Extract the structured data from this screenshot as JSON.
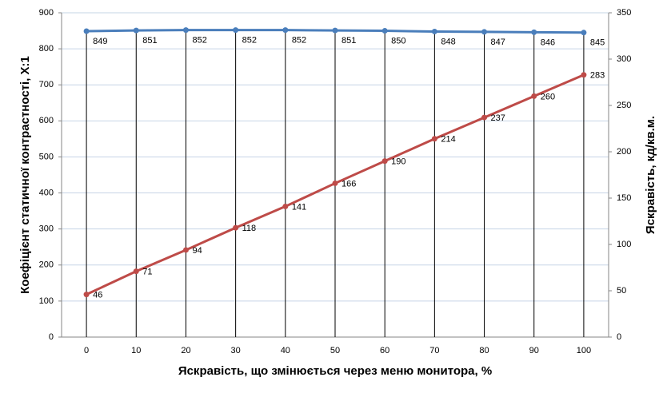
{
  "chart_data": {
    "type": "line",
    "x_label": "Яскравість, що змінюється через меню монитора, %",
    "y_label": "Коефіцієнт статичної контрастності, Х:1",
    "y2_label": "Яскравість, кд/кв.м.",
    "x": [
      0,
      10,
      20,
      30,
      40,
      50,
      60,
      70,
      80,
      90,
      100
    ],
    "xlim": [
      -5,
      105
    ],
    "xticks": [
      0,
      10,
      20,
      30,
      40,
      50,
      60,
      70,
      80,
      90,
      100
    ],
    "ylim": [
      0,
      900
    ],
    "yticks": [
      0,
      100,
      200,
      300,
      400,
      500,
      600,
      700,
      800,
      900
    ],
    "y2lim": [
      0,
      350
    ],
    "y2ticks": [
      0,
      50,
      100,
      150,
      200,
      250,
      300,
      350
    ],
    "grid": true,
    "drop_lines": true,
    "series": [
      {
        "name": "Коефіцієнт статичної контрастності",
        "color": "#4a7ebb",
        "values": [
          849,
          851,
          852,
          852,
          852,
          851,
          850,
          848,
          847,
          846,
          845
        ]
      },
      {
        "name": "Яскравість",
        "color": "#be4b48",
        "axis": "y2",
        "values": [
          46,
          71,
          94,
          118,
          141,
          166,
          190,
          214,
          237,
          260,
          283
        ]
      }
    ]
  }
}
